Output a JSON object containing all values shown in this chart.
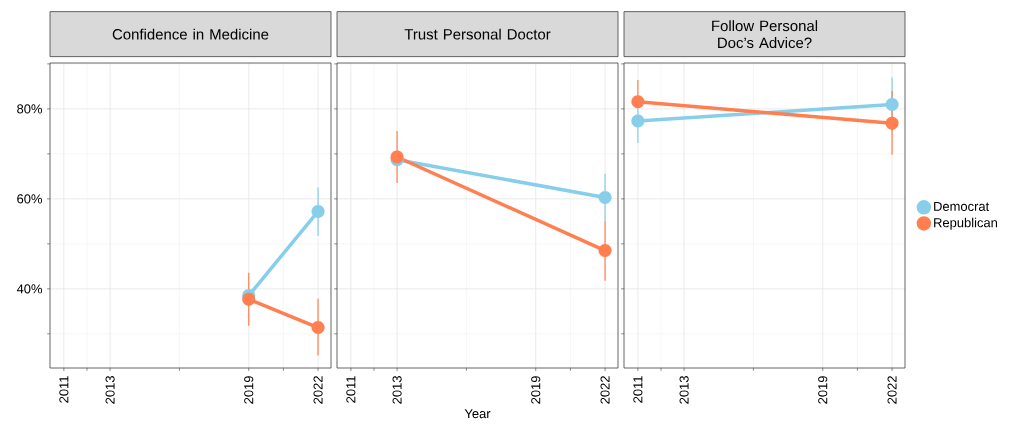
{
  "chart_data": [
    {
      "type": "line",
      "title": "Confidence in Medicine",
      "x": [
        2019,
        2022
      ],
      "xlim": [
        2010.4,
        2022.56
      ],
      "xticks": [
        2011,
        2013,
        2019,
        2022
      ],
      "ylim": [
        22.4,
        90.2
      ],
      "yticks": [
        {
          "value": 40,
          "label": "40%"
        },
        {
          "value": 60,
          "label": "60%"
        },
        {
          "value": 80,
          "label": "80%"
        }
      ],
      "grid": true,
      "marker": "circle",
      "series": [
        {
          "color": "#87ceeb",
          "values": [
            38.5,
            57.2
          ],
          "errors": [
            null,
            [
              51.8,
              62.5
            ]
          ]
        },
        {
          "color": "#ff7f50",
          "values": [
            37.7,
            31.4
          ],
          "errors": [
            [
              31.8,
              43.6
            ],
            [
              25.2,
              37.8
            ]
          ]
        }
      ]
    },
    {
      "type": "line",
      "title": "Trust Personal Doctor",
      "xlabel": "Year",
      "x": [
        2013,
        2022
      ],
      "xlim": [
        2010.4,
        2022.56
      ],
      "xticks": [
        2011,
        2013,
        2019,
        2022
      ],
      "ylim": [
        22.4,
        90.2
      ],
      "yticks": [
        {
          "value": 40,
          "label": null
        },
        {
          "value": 60,
          "label": null
        },
        {
          "value": 80,
          "label": null
        }
      ],
      "grid": true,
      "marker": "circle",
      "tick_labels": "x",
      "series": [
        {
          "color": "#87ceeb",
          "values": [
            68.7,
            60.3
          ],
          "errors": [
            null,
            [
              55.1,
              65.6
            ]
          ]
        },
        {
          "color": "#ff7f50",
          "values": [
            69.3,
            48.5
          ],
          "errors": [
            [
              63.5,
              75.1
            ],
            [
              41.8,
              55.1
            ]
          ]
        }
      ]
    },
    {
      "type": "line",
      "title": "Follow Personal Doc’s Advice?",
      "x": [
        2011,
        2022
      ],
      "xlim": [
        2010.4,
        2022.56
      ],
      "xticks": [
        2011,
        2013,
        2019,
        2022
      ],
      "ylim": [
        22.4,
        90.2
      ],
      "yticks": [
        {
          "value": 40,
          "label": null
        },
        {
          "value": 60,
          "label": null
        },
        {
          "value": 80,
          "label": null
        }
      ],
      "grid": true,
      "marker": "circle",
      "tick_labels": "x",
      "legend": "right",
      "series": [
        {
          "name": "Democrat",
          "color": "#87ceeb",
          "values": [
            77.3,
            81.0
          ],
          "errors": [
            [
              72.4,
              82.0
            ],
            [
              75.0,
              87.0
            ]
          ]
        },
        {
          "name": "Republican",
          "color": "#ff7f50",
          "values": [
            81.6,
            76.8
          ],
          "errors": [
            [
              81.6,
              86.4
            ],
            [
              69.8,
              84.0
            ]
          ]
        }
      ]
    }
  ]
}
